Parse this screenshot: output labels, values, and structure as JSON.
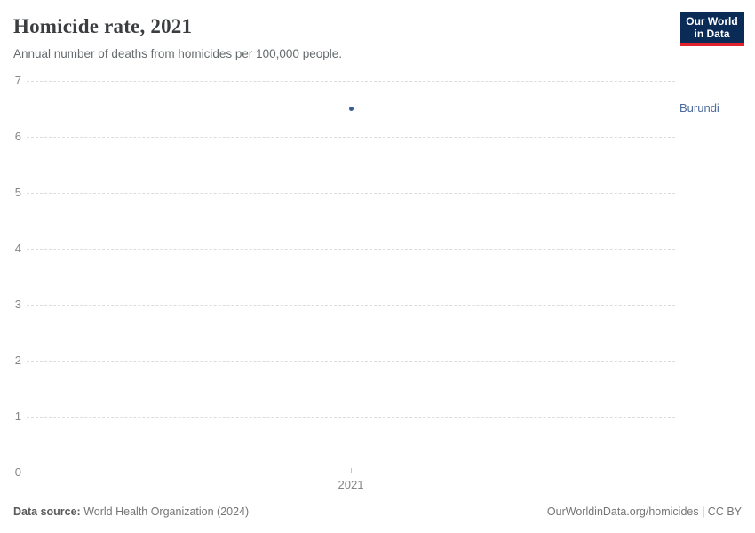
{
  "header": {
    "title": "Homicide rate, 2021",
    "subtitle": "Annual number of deaths from homicides per 100,000 people."
  },
  "logo": {
    "line1": "Our World",
    "line2": "in Data"
  },
  "chart_data": {
    "type": "scatter",
    "title": "Homicide rate, 2021",
    "x": [
      2021
    ],
    "xticks": [
      2021
    ],
    "series": [
      {
        "name": "Burundi",
        "values": [
          6.5
        ],
        "color": "#4c6a9c",
        "point_color": "#3a5c94"
      }
    ],
    "ylim": [
      0,
      7
    ],
    "yticks": [
      0,
      1,
      2,
      3,
      4,
      5,
      6,
      7
    ],
    "grid": true,
    "legend_position": "right-of-plot"
  },
  "footer": {
    "source_label": "Data source:",
    "source_value": "World Health Organization (2024)",
    "right_text": "OurWorldinData.org/homicides | CC BY"
  },
  "colors": {
    "title": "#3b3e40",
    "subtitle": "#666b6e",
    "axis": "#858585",
    "grid": "#dcdcdc",
    "baseline": "#9a9a9a",
    "tick": "#c4c4c4",
    "footer": "#757575",
    "footer_bold": "#5a5a5a",
    "logo_bg": "#0b2b57",
    "logo_accent": "#e0232e",
    "entity": "#4c6a9c",
    "point": "#3a5c94"
  }
}
